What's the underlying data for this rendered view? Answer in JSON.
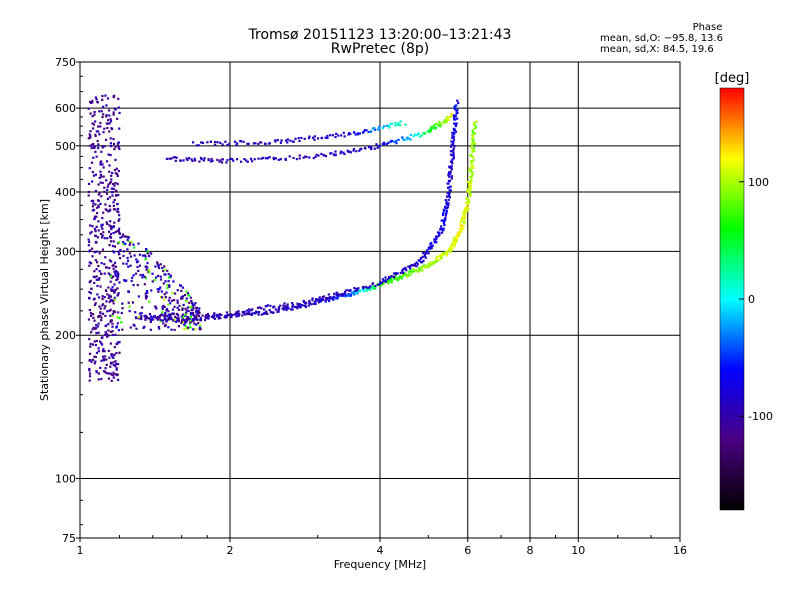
{
  "header": {
    "title": "Tromsø 20151123 13:20:00–13:21:43",
    "subtitle": "RwPretec (8p)"
  },
  "phase_stats": {
    "heading": "Phase",
    "line_o": "mean, sd,O: −95.8, 13.6",
    "line_x": "mean, sd,X:  84.5, 19.6"
  },
  "chart_data": {
    "type": "scatter",
    "title": "Tromsø 20151123 13:20:00–13:21:43",
    "subtitle": "RwPretec (8p)",
    "xlabel": "Frequency [MHz]",
    "ylabel": "Stationary phase Virtual Height [km]",
    "x_scale": "log",
    "y_scale": "log",
    "xlim": [
      1,
      16
    ],
    "ylim": [
      75,
      750
    ],
    "x_ticks": [
      1,
      2,
      4,
      6,
      8,
      10,
      16
    ],
    "y_ticks": [
      75,
      100,
      200,
      300,
      400,
      500,
      600,
      750
    ],
    "grid": true,
    "colorbar": {
      "label": "[deg]",
      "range": [
        -180,
        180
      ],
      "ticks": [
        -100,
        0,
        100
      ],
      "colors": [
        "#000000",
        "#4b0082",
        "#0000ff",
        "#00ffff",
        "#00ff00",
        "#ffff00",
        "#ff0000"
      ]
    },
    "series": [
      {
        "mode": "O",
        "trace_points": [
          [
            1.3,
            218,
            -105
          ],
          [
            1.6,
            215,
            -100
          ],
          [
            2.0,
            220,
            -95
          ],
          [
            2.5,
            225,
            -92
          ],
          [
            3.0,
            235,
            -85
          ],
          [
            3.5,
            245,
            -40
          ],
          [
            4.0,
            255,
            60
          ],
          [
            4.5,
            268,
            80
          ],
          [
            5.0,
            280,
            95
          ],
          [
            5.5,
            300,
            110
          ],
          [
            5.8,
            330,
            120
          ],
          [
            6.0,
            380,
            110
          ],
          [
            6.1,
            450,
            100
          ],
          [
            6.2,
            560,
            90
          ]
        ],
        "upper_trace_points": [
          [
            1.5,
            470,
            -100
          ],
          [
            2.0,
            465,
            -95
          ],
          [
            3.0,
            475,
            -90
          ],
          [
            4.0,
            500,
            -85
          ],
          [
            5.0,
            535,
            40
          ],
          [
            5.6,
            580,
            120
          ]
        ]
      },
      {
        "mode": "X",
        "trace_points": [
          [
            1.3,
            220,
            -100
          ],
          [
            2.0,
            222,
            -98
          ],
          [
            3.0,
            238,
            -95
          ],
          [
            4.0,
            258,
            -90
          ],
          [
            4.8,
            285,
            -85
          ],
          [
            5.3,
            330,
            -70
          ],
          [
            5.5,
            400,
            -80
          ],
          [
            5.6,
            500,
            -85
          ],
          [
            5.7,
            620,
            -60
          ]
        ],
        "upper_trace_points": [
          [
            1.7,
            505,
            -95
          ],
          [
            2.5,
            510,
            -90
          ],
          [
            3.5,
            530,
            -80
          ],
          [
            4.5,
            560,
            30
          ]
        ]
      }
    ]
  }
}
